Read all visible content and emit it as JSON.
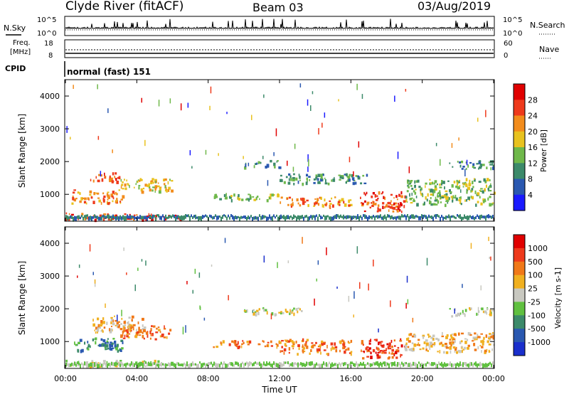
{
  "header": {
    "station": "Clyde River (fitACF)",
    "beam": "Beam 03",
    "date": "03/Aug/2019"
  },
  "strips": {
    "nsky": {
      "label": "N.Sky",
      "ticks": [
        "10^5",
        "10^0"
      ]
    },
    "nsearch": {
      "label": "N.Search",
      "ticks": [
        "10^5",
        "10^0"
      ]
    },
    "freq": {
      "label_line1": "Freq.",
      "label_line2": "[MHz]",
      "ticks": [
        "18",
        "8"
      ]
    },
    "nave": {
      "label": "Nave",
      "ticks": [
        "60",
        "0"
      ]
    },
    "cpid": {
      "label": "CPID",
      "text": "normal (fast) 151"
    }
  },
  "chart_data": [
    {
      "type": "heatmap",
      "title": "",
      "xlabel": "Time UT",
      "ylabel": "Slant Range [km]",
      "x_ticks": [
        "00:00",
        "04:00",
        "08:00",
        "12:00",
        "16:00",
        "20:00",
        "00:00"
      ],
      "y_ticks": [
        "1000",
        "2000",
        "3000",
        "4000"
      ],
      "xlim": [
        0,
        24
      ],
      "ylim": [
        180,
        4500
      ],
      "colorbar": {
        "label": "Power [dB]",
        "ticks": [
          "4",
          "8",
          "12",
          "16",
          "20",
          "24",
          "28"
        ],
        "colors": [
          "#1a1aff",
          "#2a58b0",
          "#3c8a6a",
          "#6fb84a",
          "#e8c21f",
          "#f28c1c",
          "#ee3a1c",
          "#e00000"
        ]
      },
      "series": [
        {
          "t0": 0.0,
          "t1": 5.2,
          "r0": 250,
          "r1": 450,
          "level": 6
        },
        {
          "t0": 0.3,
          "t1": 3.2,
          "r0": 750,
          "r1": 1150,
          "level": 5
        },
        {
          "t0": 1.5,
          "t1": 3.0,
          "r0": 1400,
          "r1": 1700,
          "level": 6
        },
        {
          "t0": 3.0,
          "t1": 6.0,
          "r0": 1100,
          "r1": 1500,
          "level": 4
        },
        {
          "t0": 4.5,
          "t1": 6.5,
          "r0": 250,
          "r1": 380,
          "level": 7
        },
        {
          "t0": 8.2,
          "t1": 12.0,
          "r0": 850,
          "r1": 1050,
          "level": 3
        },
        {
          "t0": 10.0,
          "t1": 12.0,
          "r0": 1850,
          "r1": 2050,
          "level": 2
        },
        {
          "t0": 12.0,
          "t1": 16.0,
          "r0": 650,
          "r1": 950,
          "level": 5
        },
        {
          "t0": 12.0,
          "t1": 17.0,
          "r0": 1350,
          "r1": 1650,
          "level": 2
        },
        {
          "t0": 16.5,
          "t1": 19.0,
          "r0": 500,
          "r1": 1100,
          "level": 6
        },
        {
          "t0": 19.0,
          "t1": 24.0,
          "r0": 700,
          "r1": 1500,
          "level": 3
        },
        {
          "t0": 21.5,
          "t1": 24.0,
          "r0": 1800,
          "r1": 2050,
          "level": 2
        }
      ]
    },
    {
      "type": "heatmap",
      "title": "",
      "xlabel": "Time UT",
      "ylabel": "Slant Range [km]",
      "x_ticks": [
        "00:00",
        "04:00",
        "08:00",
        "12:00",
        "16:00",
        "20:00",
        "00:00"
      ],
      "y_ticks": [
        "1000",
        "2000",
        "3000",
        "4000"
      ],
      "xlim": [
        0,
        24
      ],
      "ylim": [
        180,
        4500
      ],
      "colorbar": {
        "label": "Velocity [m s-1]",
        "ticks": [
          "1000",
          "500",
          "100",
          "25",
          "-25",
          "-100",
          "-500",
          "-1000"
        ],
        "colors": [
          "#1a2fcc",
          "#2a58b0",
          "#3c8a6a",
          "#60c040",
          "#c8c8c0",
          "#f0b020",
          "#f07818",
          "#ee3a1c",
          "#e00000"
        ]
      },
      "series": [
        {
          "t0": 0.0,
          "t1": 5.2,
          "r0": 250,
          "r1": 450,
          "level": 4
        },
        {
          "t0": 0.3,
          "t1": 3.2,
          "r0": 750,
          "r1": 1150,
          "level": 2
        },
        {
          "t0": 1.5,
          "t1": 4.5,
          "r0": 1300,
          "r1": 1800,
          "level": 5
        },
        {
          "t0": 3.0,
          "t1": 6.0,
          "r0": 1100,
          "r1": 1500,
          "level": 6
        },
        {
          "t0": 8.2,
          "t1": 12.0,
          "r0": 850,
          "r1": 1050,
          "level": 6
        },
        {
          "t0": 10.0,
          "t1": 13.5,
          "r0": 1850,
          "r1": 2050,
          "level": 4
        },
        {
          "t0": 12.0,
          "t1": 16.0,
          "r0": 650,
          "r1": 1100,
          "level": 6
        },
        {
          "t0": 16.5,
          "t1": 19.0,
          "r0": 500,
          "r1": 1100,
          "level": 7
        },
        {
          "t0": 19.0,
          "t1": 24.0,
          "r0": 700,
          "r1": 1300,
          "level": 5
        },
        {
          "t0": 21.5,
          "t1": 24.0,
          "r0": 1800,
          "r1": 2050,
          "level": 4
        }
      ]
    }
  ]
}
